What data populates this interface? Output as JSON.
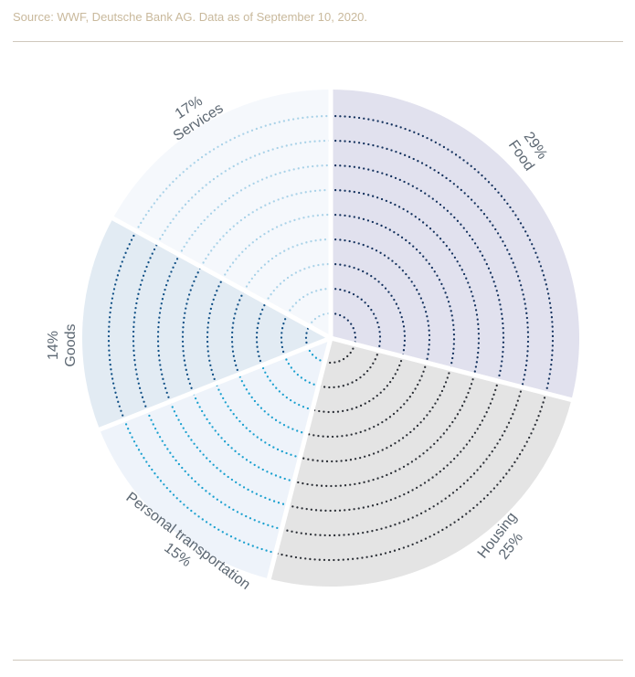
{
  "source": "Source: WWF, Deutsche Bank AG. Data as of September 10, 2020.",
  "chart_data": {
    "type": "pie",
    "start_angle": "top, clockwise",
    "slices": [
      {
        "label": "Food",
        "value": 29,
        "value_label": "29%",
        "fill": "#e1e1ee",
        "dot_color": "#14325e"
      },
      {
        "label": "Housing",
        "value": 25,
        "value_label": "25%",
        "fill": "#e4e4e4",
        "dot_color": "#2b2f36"
      },
      {
        "label": "Personal transportation",
        "value": 15,
        "value_label": "15%",
        "fill": "#eef3fa",
        "dot_color": "#1aa0cf"
      },
      {
        "label": "Goods",
        "value": 14,
        "value_label": "14%",
        "fill": "#e2ebf3",
        "dot_color": "#0f4f85"
      },
      {
        "label": "Services",
        "value": 17,
        "value_label": "17%",
        "fill": "#f5f8fc",
        "dot_color": "#a9d2e8"
      }
    ]
  }
}
